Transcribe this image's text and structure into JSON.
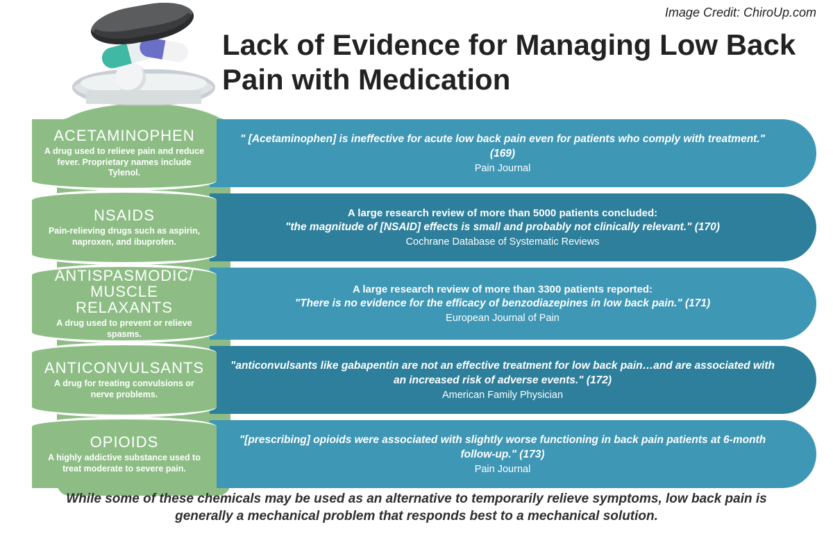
{
  "credit": "Image Credit: ChiroUp.com",
  "title": "Lack of Evidence for Managing Low Back Pain with Medication",
  "colors": {
    "bottle_green": "#8dbd85",
    "bar_light": "#3e97b5",
    "bar_dark": "#2e7f9b",
    "cap": "#3b3c3e"
  },
  "rows": [
    {
      "name": "ACETAMINOPHEN",
      "desc": "A drug used to relieve pain and reduce fever. Proprietary names include Tylenol.",
      "lead": "",
      "quote": "\" [Acetaminophen] is ineffective for acute low back pain even for patients who comply with treatment.\" (169)",
      "source": "Pain Journal",
      "shade": "light"
    },
    {
      "name": "NSAIDS",
      "desc": "Pain-relieving drugs such as aspirin, naproxen, and ibuprofen.",
      "lead": "A large research review of more than 5000 patients concluded:",
      "quote": "\"the magnitude of [NSAID] effects is small and probably not clinically relevant.\" (170)",
      "source": "Cochrane Database of Systematic Reviews",
      "shade": "dark"
    },
    {
      "name": "ANTISPASMODIC/ MUSCLE RELAXANTS",
      "desc": "A drug used to prevent or relieve spasms.",
      "lead": "A large research review of more than 3300 patients reported:",
      "quote": "\"There is no evidence for the efficacy of benzodiazepines in low back pain.\" (171)",
      "source": "European Journal of Pain",
      "shade": "light"
    },
    {
      "name": "ANTICONVULSANTS",
      "desc": "A drug for treating convulsions or nerve problems.",
      "lead": "",
      "quote": "\"anticonvulsants like gabapentin are not an effective treatment for low back pain…and are associated with an increased risk of adverse events.\" (172)",
      "source": "American Family Physician",
      "shade": "dark"
    },
    {
      "name": "OPIOIDS",
      "desc": "A highly addictive substance used to treat moderate to severe pain.",
      "lead": "",
      "quote": "\"[prescribing] opioids were associated with slightly worse functioning in back pain patients at 6-month follow-up.\" (173)",
      "source": "Pain Journal",
      "shade": "light"
    }
  ],
  "footer": "While some of these chemicals may be used as an alternative to temporarily relieve symptoms, low back pain is generally a mechanical problem that responds best to a mechanical solution."
}
